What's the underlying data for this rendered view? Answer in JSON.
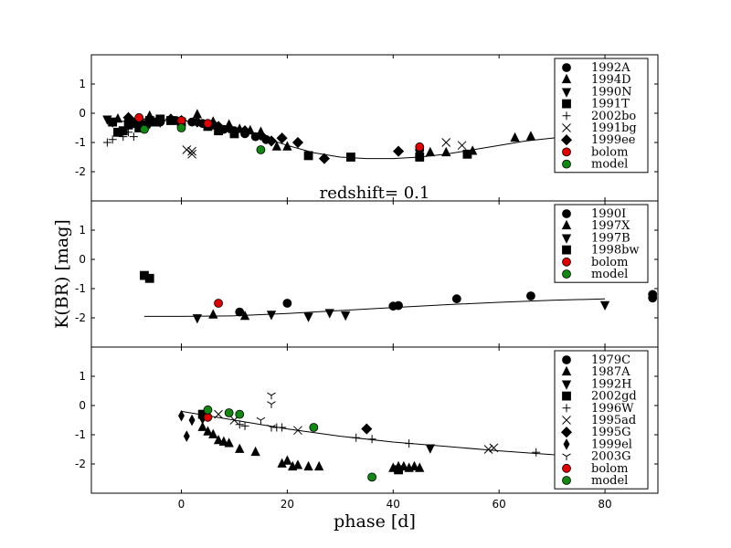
{
  "chart_data": {
    "type": "scatter",
    "xlabel": "phase [d]",
    "ylabel": "K(BR) [mag]",
    "xlim": [
      -17,
      90
    ],
    "ylim": [
      -3,
      2
    ],
    "x_ticks": [
      0,
      20,
      40,
      60,
      80
    ],
    "y_ticks": [
      1,
      0,
      -1,
      -2
    ],
    "annotation": "redshift= 0.1",
    "panels": [
      {
        "name": "top",
        "legend": [
          "1992A",
          "1994D",
          "1990N",
          "1991T",
          "2002bo",
          "1991bg",
          "1999ee",
          "bolom",
          "model"
        ],
        "curve": {
          "x": [
            -14,
            -8,
            0,
            5,
            10,
            15,
            20,
            25,
            30,
            35,
            40,
            45,
            50,
            55,
            60,
            65,
            70,
            75,
            80
          ],
          "y": [
            -0.3,
            -0.25,
            -0.25,
            -0.35,
            -0.55,
            -0.8,
            -1.1,
            -1.35,
            -1.5,
            -1.55,
            -1.55,
            -1.5,
            -1.4,
            -1.25,
            -1.1,
            -0.95,
            -0.85,
            -0.75,
            -0.7
          ]
        },
        "series": [
          {
            "name": "1992A",
            "marker": "circle",
            "color": "#000000",
            "x": [
              -9,
              -4,
              -1,
              2,
              4,
              6,
              8,
              10,
              12,
              14,
              16,
              45
            ],
            "y": [
              -0.3,
              -0.3,
              -0.25,
              -0.3,
              -0.35,
              -0.4,
              -0.55,
              -0.6,
              -0.7,
              -0.8,
              -0.9,
              -1.25
            ]
          },
          {
            "name": "1994D",
            "marker": "triangle-up",
            "color": "#000000",
            "x": [
              -12,
              -10,
              -6,
              -2,
              3,
              6,
              9,
              11,
              13,
              15,
              18,
              20,
              47,
              50,
              55,
              63,
              66
            ],
            "y": [
              -0.2,
              -0.15,
              -0.1,
              -0.2,
              -0.05,
              -0.3,
              -0.4,
              -0.55,
              -0.6,
              -0.65,
              -1.15,
              -1.15,
              -1.35,
              -1.35,
              -1.3,
              -0.85,
              -0.8
            ]
          },
          {
            "name": "1990N",
            "marker": "triangle-down",
            "color": "#000000",
            "x": [
              -14,
              -13,
              -10,
              -8,
              -6,
              -4
            ],
            "y": [
              -0.2,
              -0.3,
              -0.4,
              -0.3,
              -0.35,
              -0.3
            ]
          },
          {
            "name": "1991T",
            "marker": "square",
            "color": "#000000",
            "x": [
              -13,
              -12,
              -11,
              -10,
              -9,
              -8,
              -7,
              -6,
              -5,
              -4,
              -2,
              0,
              5,
              7,
              10,
              24,
              32,
              45,
              54
            ],
            "y": [
              -0.3,
              -0.65,
              -0.6,
              -0.4,
              -0.35,
              -0.5,
              -0.4,
              -0.25,
              -0.3,
              -0.2,
              -0.25,
              -0.3,
              -0.45,
              -0.6,
              -0.7,
              -1.45,
              -1.5,
              -1.5,
              -1.4
            ]
          },
          {
            "name": "2002bo",
            "marker": "plus",
            "color": "#000000",
            "x": [
              -14,
              -13,
              -11,
              -10,
              -9
            ],
            "y": [
              -1.0,
              -0.9,
              -0.8,
              -0.65,
              -0.8
            ]
          },
          {
            "name": "1991bg",
            "marker": "x",
            "color": "#000000",
            "x": [
              1,
              2,
              2,
              32,
              50,
              53
            ],
            "y": [
              -1.25,
              -1.3,
              -1.4,
              -1.5,
              -1.0,
              -1.1
            ]
          },
          {
            "name": "1999ee",
            "marker": "diamond",
            "color": "#000000",
            "x": [
              -10,
              -8,
              -6,
              -4,
              -2,
              0,
              3,
              7,
              9,
              12,
              15,
              17,
              19,
              22,
              27,
              41
            ],
            "y": [
              -0.15,
              -0.2,
              -0.2,
              -0.25,
              -0.2,
              -0.25,
              -0.3,
              -0.45,
              -0.5,
              -0.6,
              -0.75,
              -0.95,
              -0.85,
              -1.0,
              -1.55,
              -1.3
            ]
          },
          {
            "name": "bolom",
            "marker": "circle",
            "color": "#e00000",
            "x": [
              -8,
              0,
              5,
              45
            ],
            "y": [
              -0.15,
              -0.25,
              -0.35,
              -1.15
            ]
          },
          {
            "name": "model",
            "marker": "circle",
            "color": "#118811",
            "x": [
              -7,
              0,
              15
            ],
            "y": [
              -0.55,
              -0.5,
              -1.25
            ]
          }
        ]
      },
      {
        "name": "middle",
        "legend": [
          "1990I",
          "1997X",
          "1997B",
          "1998bw",
          "bolom",
          "model"
        ],
        "curve": {
          "x": [
            -7,
            0,
            10,
            20,
            30,
            40,
            50,
            60,
            70,
            80
          ],
          "y": [
            -1.95,
            -1.95,
            -1.93,
            -1.85,
            -1.75,
            -1.65,
            -1.55,
            -1.47,
            -1.4,
            -1.35
          ]
        },
        "series": [
          {
            "name": "1990I",
            "marker": "circle",
            "color": "#000000",
            "x": [
              11,
              20,
              40,
              41,
              52,
              66,
              89,
              89
            ],
            "y": [
              -1.8,
              -1.5,
              -1.6,
              -1.58,
              -1.35,
              -1.25,
              -1.2,
              -1.32
            ]
          },
          {
            "name": "1997X",
            "marker": "triangle-up",
            "color": "#000000",
            "x": [
              6,
              12
            ],
            "y": [
              -1.9,
              -1.95
            ]
          },
          {
            "name": "1997B",
            "marker": "triangle-down",
            "color": "#000000",
            "x": [
              3,
              17,
              24,
              28,
              31,
              80
            ],
            "y": [
              -2.0,
              -1.88,
              -1.95,
              -1.82,
              -1.9,
              -1.55
            ]
          },
          {
            "name": "1998bw",
            "marker": "square",
            "color": "#000000",
            "x": [
              -7,
              -6
            ],
            "y": [
              -0.55,
              -0.65
            ]
          },
          {
            "name": "bolom",
            "marker": "circle",
            "color": "#e00000",
            "x": [
              7
            ],
            "y": [
              -1.5
            ]
          },
          {
            "name": "model",
            "marker": "circle",
            "color": "#118811",
            "x": [],
            "y": []
          }
        ]
      },
      {
        "name": "bottom",
        "legend": [
          "1979C",
          "1987A",
          "1992H",
          "2002gd",
          "1996W",
          "1995ad",
          "1995G",
          "1999el",
          "2003G",
          "bolom",
          "model"
        ],
        "curve": {
          "x": [
            0,
            10,
            20,
            30,
            40,
            50,
            60,
            70,
            75
          ],
          "y": [
            -0.2,
            -0.5,
            -0.8,
            -1.05,
            -1.25,
            -1.4,
            -1.55,
            -1.68,
            -1.72
          ]
        },
        "series": [
          {
            "name": "1979C",
            "marker": "circle",
            "color": "#000000",
            "x": [],
            "y": []
          },
          {
            "name": "1987A",
            "marker": "triangle-up",
            "color": "#000000",
            "x": [
              4,
              5,
              6,
              7,
              8,
              9,
              11,
              14,
              19,
              20,
              21,
              22,
              24,
              26,
              40,
              41,
              42,
              43,
              44,
              45
            ],
            "y": [
              -0.75,
              -0.9,
              -1.0,
              -1.2,
              -1.25,
              -1.3,
              -1.5,
              -1.6,
              -2.0,
              -1.9,
              -2.1,
              -2.05,
              -2.1,
              -2.1,
              -2.15,
              -2.1,
              -2.1,
              -2.15,
              -2.1,
              -2.15
            ]
          },
          {
            "name": "1992H",
            "marker": "triangle-down",
            "color": "#000000",
            "x": [
              47
            ],
            "y": [
              -1.45
            ]
          },
          {
            "name": "2002gd",
            "marker": "square",
            "color": "#000000",
            "x": [
              4,
              41
            ],
            "y": [
              -0.3,
              -2.2
            ]
          },
          {
            "name": "1996W",
            "marker": "plus",
            "color": "#000000",
            "x": [
              11,
              12,
              18,
              19,
              33,
              36,
              43,
              67
            ],
            "y": [
              -0.65,
              -0.7,
              -0.75,
              -0.75,
              -1.1,
              -1.15,
              -1.3,
              -1.6
            ]
          },
          {
            "name": "1995ad",
            "marker": "x",
            "color": "#000000",
            "x": [
              7,
              10,
              22,
              58,
              59
            ],
            "y": [
              -0.3,
              -0.5,
              -0.85,
              -1.5,
              -1.45
            ]
          },
          {
            "name": "1995G",
            "marker": "diamond",
            "color": "#000000",
            "x": [
              35
            ],
            "y": [
              -0.8
            ]
          },
          {
            "name": "1999el",
            "marker": "thin-diamond",
            "color": "#000000",
            "x": [
              0,
              1,
              2,
              4
            ],
            "y": [
              -0.35,
              -1.05,
              -0.5,
              -0.45
            ]
          },
          {
            "name": "2003G",
            "marker": "tri-down",
            "color": "#000000",
            "x": [
              15,
              17,
              17,
              17
            ],
            "y": [
              -0.5,
              -0.75,
              0.05,
              0.35
            ]
          },
          {
            "name": "bolom",
            "marker": "circle",
            "color": "#e00000",
            "x": [
              5
            ],
            "y": [
              -0.4
            ]
          },
          {
            "name": "model",
            "marker": "circle",
            "color": "#118811",
            "x": [
              5,
              9,
              11,
              25,
              36
            ],
            "y": [
              -0.15,
              -0.25,
              -0.3,
              -0.75,
              -2.45
            ]
          }
        ]
      }
    ]
  }
}
